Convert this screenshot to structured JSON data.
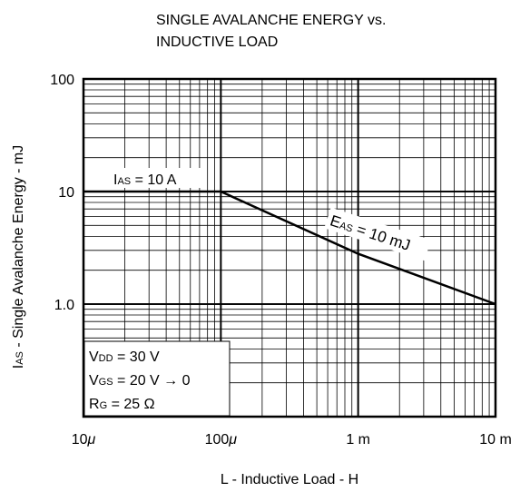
{
  "chart_data": {
    "type": "line",
    "title_lines": [
      "SINGLE AVALANCHE ENERGY vs.",
      "INDUCTIVE LOAD"
    ],
    "xlabel": "L - Inductive Load - H",
    "ylabel": {
      "sub": "AS",
      "prefix": "I",
      "rest": " - Single Avalanche Energy - mJ"
    },
    "x_scale": "log",
    "y_scale": "log",
    "xlim": [
      1e-05,
      0.01
    ],
    "ylim": [
      0.1,
      100
    ],
    "x_ticks": [
      {
        "value": 1e-05,
        "num": "10",
        "unit": "μ"
      },
      {
        "value": 0.0001,
        "num": "100",
        "unit": "μ"
      },
      {
        "value": 0.001,
        "num": "1 m",
        "unit": ""
      },
      {
        "value": 0.01,
        "num": "10 m",
        "unit": ""
      }
    ],
    "y_ticks": [
      {
        "value": 100,
        "label": "100"
      },
      {
        "value": 10,
        "label": "10"
      },
      {
        "value": 1,
        "label": "1.0"
      }
    ],
    "grid": true,
    "series": [
      {
        "x": [
          1e-05,
          0.0001,
          0.001,
          0.01
        ],
        "y": [
          10,
          10,
          2.8,
          1.0
        ]
      }
    ],
    "annotations": [
      {
        "pre": "I",
        "sub": "AS",
        "post": " = 10 A"
      },
      {
        "pre": "E",
        "sub": "AS",
        "post": " = 10 mJ"
      }
    ],
    "conditions": [
      {
        "pre": "V",
        "sub": "DD",
        "post": " = 30 V"
      },
      {
        "pre": "V",
        "sub": "GS",
        "post": " = 20 V → 0"
      },
      {
        "pre": "R",
        "sub": "G",
        "post": " = 25 Ω"
      }
    ]
  }
}
